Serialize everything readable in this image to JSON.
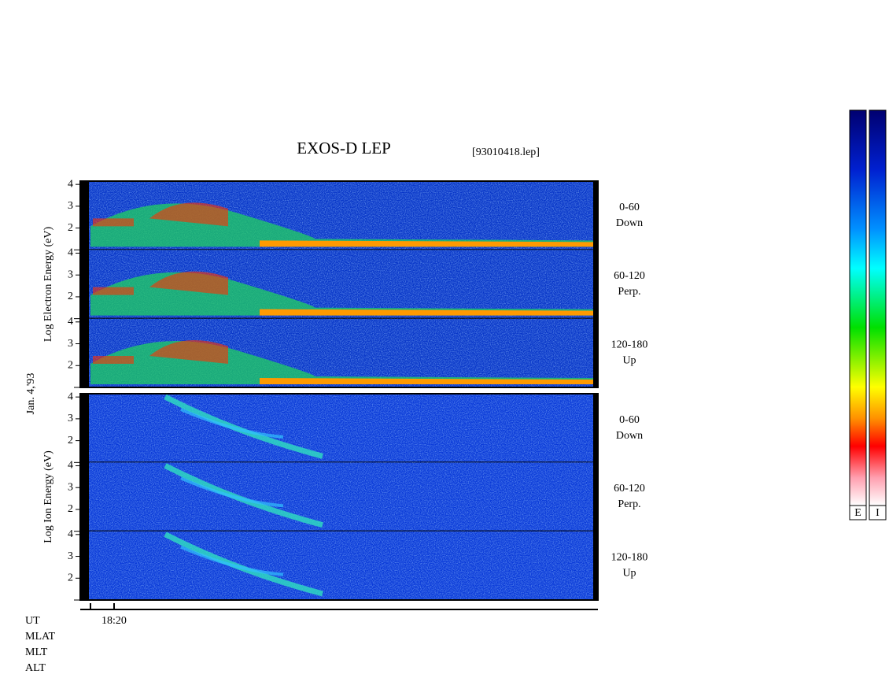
{
  "chart_data": {
    "type": "spectrogram",
    "title": "EXOS-D LEP",
    "subtitle": "[93010418.lep]",
    "date_label": "Jan. 4,'93",
    "groups": [
      {
        "ylabel": "Log Electron Energy (eV)",
        "ylim": [
          1,
          4.15
        ],
        "yticks": [
          2,
          3,
          4
        ],
        "panels": [
          {
            "angle": "0-60",
            "direction": "Down"
          },
          {
            "angle": "60-120",
            "direction": "Perp."
          },
          {
            "angle": "120-180",
            "direction": "Up"
          }
        ]
      },
      {
        "ylabel": "Log Ion Energy (eV)",
        "ylim": [
          1,
          4.15
        ],
        "yticks": [
          2,
          3,
          4
        ],
        "panels": [
          {
            "angle": "0-60",
            "direction": "Down"
          },
          {
            "angle": "60-120",
            "direction": "Perp."
          },
          {
            "angle": "120-180",
            "direction": "Up"
          }
        ]
      }
    ],
    "x_tick_labels": [
      "18:20"
    ],
    "x_row_labels": [
      "UT",
      "MLAT",
      "MLT",
      "ALT"
    ],
    "colorbars": [
      "E",
      "I"
    ]
  }
}
